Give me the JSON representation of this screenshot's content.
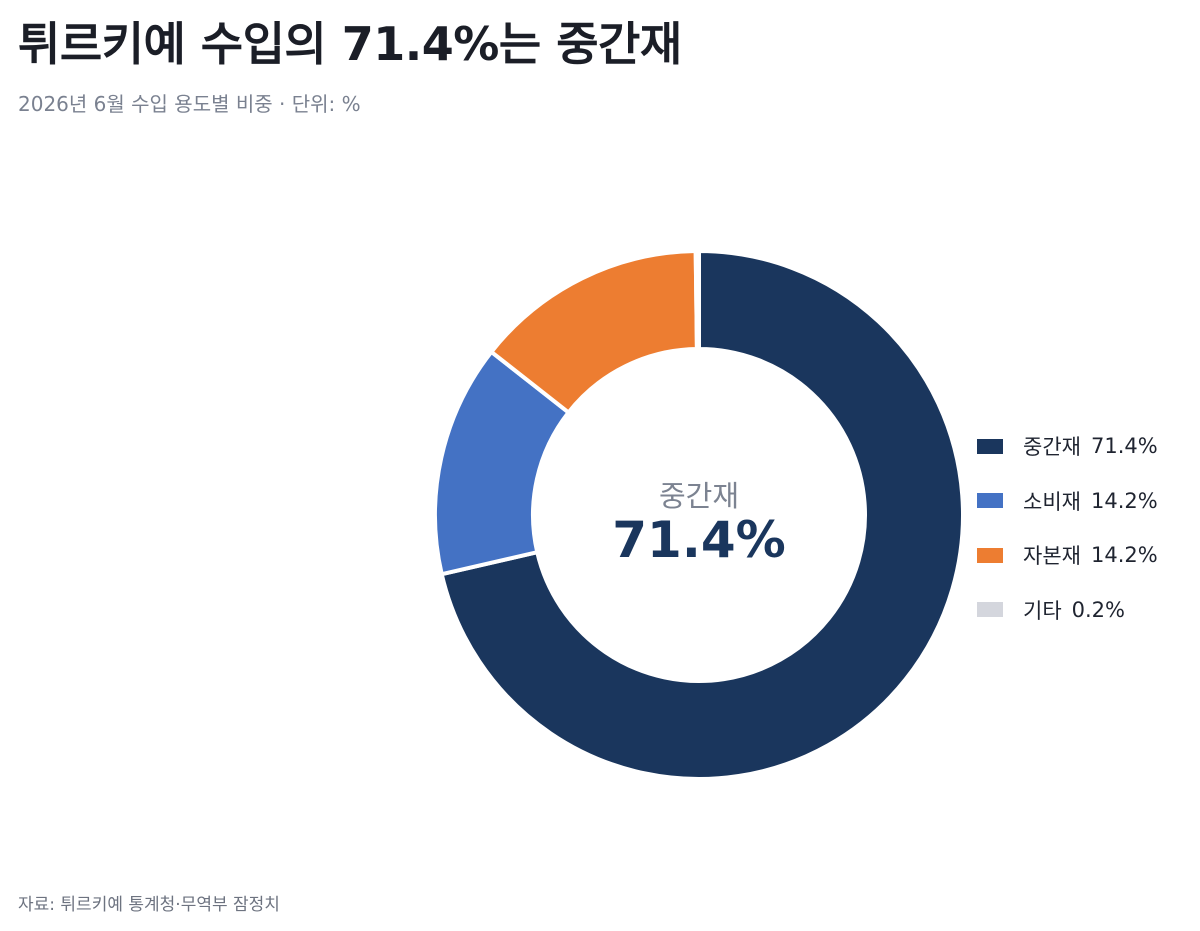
{
  "title": "튀르키예 수입의 71.4%는 중간재",
  "subtitle": "2026년 6월 수입 용도별 비중 · 단위: %",
  "source": "자료: 튀르키예 통계청·무역부 잠정치",
  "center": {
    "label": "중간재",
    "value": "71.4%"
  },
  "legend": [
    {
      "label": "중간재",
      "value": "71.4%",
      "color": "#1a365d"
    },
    {
      "label": "소비재",
      "value": "14.2%",
      "color": "#4472c4"
    },
    {
      "label": "자본재",
      "value": "14.2%",
      "color": "#ed7d31"
    },
    {
      "label": "기타",
      "value": "0.2%",
      "color": "#d4d6dd"
    }
  ],
  "chart_data": {
    "type": "pie",
    "variant": "donut",
    "title": "튀르키예 수입의 71.4%는 중간재",
    "subtitle": "2026년 6월 수입 용도별 비중 · 단위: %",
    "categories": [
      "중간재",
      "소비재",
      "자본재",
      "기타"
    ],
    "values": [
      71.4,
      14.2,
      14.2,
      0.2
    ],
    "unit": "%",
    "colors": [
      "#1a365d",
      "#4472c4",
      "#ed7d31",
      "#d4d6dd"
    ],
    "start_angle": "top",
    "direction": "clockwise",
    "legend_position": "right"
  }
}
